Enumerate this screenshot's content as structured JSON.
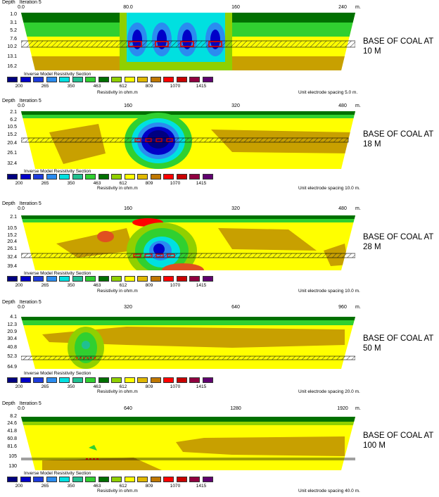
{
  "legend": {
    "title": "Inverse Model Resistivity Section",
    "colors": [
      "#000080",
      "#0000c8",
      "#1e3cdc",
      "#2a8cf0",
      "#00e0e0",
      "#20c090",
      "#30d030",
      "#007000",
      "#90d000",
      "#ffff00",
      "#e0b800",
      "#c07800",
      "#ff0000",
      "#c80000",
      "#900040",
      "#600070"
    ],
    "values": [
      "200",
      "265",
      "350",
      "463",
      "612",
      "809",
      "1070",
      "1415"
    ],
    "unit_label": "Resistivity in ohm.m"
  },
  "header": {
    "depth": "Depth",
    "iteration": "Iteration 5",
    "unit": "m."
  },
  "panels": [
    {
      "x_ticks": [
        "0.0",
        "80.0",
        "160",
        "240"
      ],
      "depth_labels": [
        "1.0",
        "3.1",
        "5.2",
        "7.6",
        "10.2",
        "13.1",
        "16.2"
      ],
      "base_label": [
        "BASE OF COAL AT",
        "10 M"
      ],
      "spacing": "Unit electrode spacing 5.0 m."
    },
    {
      "x_ticks": [
        "0.0",
        "160",
        "320",
        "480"
      ],
      "depth_labels": [
        "2.1",
        "6.2",
        "10.5",
        "15.2",
        "20.4",
        "26.1",
        "32.4"
      ],
      "base_label": [
        "BASE OF COAL AT",
        "18 M"
      ],
      "spacing": "Unit electrode spacing 10.0 m."
    },
    {
      "x_ticks": [
        "0.0",
        "160",
        "320",
        "480"
      ],
      "depth_labels": [
        "2.1",
        "10.5",
        "15.2",
        "20.4",
        "26.1",
        "32.4",
        "39.4"
      ],
      "base_label": [
        "BASE OF COAL AT",
        "28 M"
      ],
      "spacing": "Unit electrode spacing 10.0 m."
    },
    {
      "x_ticks": [
        "0.0",
        "320",
        "640",
        "960"
      ],
      "depth_labels": [
        "4.1",
        "12.3",
        "20.9",
        "30.4",
        "40.8",
        "52.3",
        "64.9"
      ],
      "base_label": [
        "BASE OF COAL AT",
        "50 M"
      ],
      "spacing": "Unit electrode spacing 20.0 m."
    },
    {
      "x_ticks": [
        "0.0",
        "640",
        "1280",
        "1920"
      ],
      "depth_labels": [
        "8.2",
        "24.6",
        "41.8",
        "60.8",
        "81.6",
        "105",
        "130"
      ],
      "base_label": [
        "BASE OF COAL AT",
        "100 M"
      ],
      "spacing": "Unit electrode spacing 40.0 m."
    }
  ]
}
